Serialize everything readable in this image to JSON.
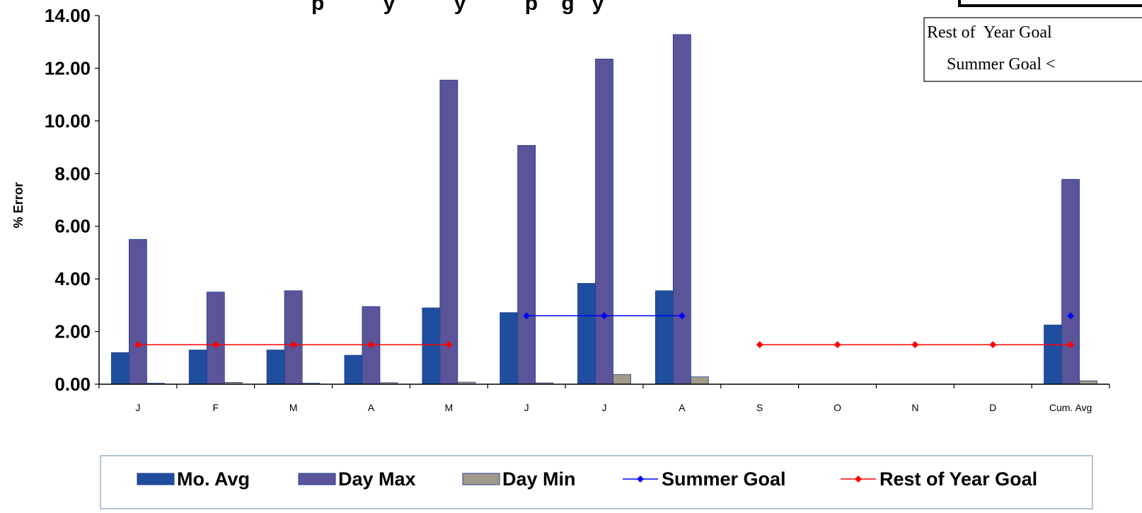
{
  "chart_data": {
    "type": "bar",
    "title": "p          y          y          p    g   y",
    "ylabel": "% Error",
    "xlabel": "",
    "ylim": [
      0,
      14
    ],
    "yticks": [
      "0.00",
      "2.00",
      "4.00",
      "6.00",
      "8.00",
      "10.00",
      "12.00",
      "14.00"
    ],
    "categories": [
      "J",
      "F",
      "M",
      "A",
      "M",
      "J",
      "J",
      "A",
      "S",
      "O",
      "N",
      "D",
      "Cum. Avg"
    ],
    "series": [
      {
        "name": "Mo. Avg",
        "kind": "bar",
        "color": "#1F4E9E",
        "values": [
          1.2,
          1.3,
          1.3,
          1.1,
          2.9,
          2.72,
          3.83,
          3.55,
          null,
          null,
          null,
          null,
          2.25
        ]
      },
      {
        "name": "Day Max",
        "kind": "bar",
        "color": "#5B5499",
        "values": [
          5.5,
          3.5,
          3.55,
          2.95,
          11.55,
          9.07,
          12.35,
          13.28,
          null,
          null,
          null,
          null,
          7.78
        ]
      },
      {
        "name": "Day Min",
        "kind": "bar",
        "color": "#A09A88",
        "values": [
          0.03,
          0.07,
          0.04,
          0.06,
          0.08,
          0.05,
          0.37,
          0.28,
          null,
          null,
          null,
          null,
          0.13
        ]
      },
      {
        "name": "Summer Goal",
        "kind": "line",
        "color": "#0000FF",
        "segment_breaks": [
          8
        ],
        "values": [
          null,
          null,
          null,
          null,
          null,
          2.6,
          2.6,
          2.6,
          null,
          null,
          null,
          null,
          2.6
        ]
      },
      {
        "name": "Rest of Year Goal",
        "kind": "line",
        "color": "#FF0000",
        "segment_breaks": [
          5
        ],
        "values": [
          1.5,
          1.5,
          1.5,
          1.5,
          1.5,
          null,
          null,
          null,
          1.5,
          1.5,
          1.5,
          1.5,
          1.5
        ]
      }
    ],
    "legend_position": "bottom",
    "grid": false
  },
  "goal_box": {
    "line1": "Rest of  Year Goal",
    "line2": "Summer Goal <"
  }
}
